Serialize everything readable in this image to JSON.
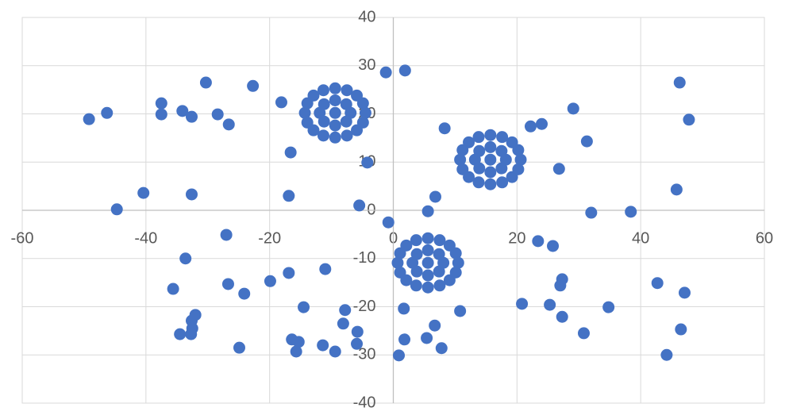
{
  "chart_data": {
    "type": "scatter",
    "color": "#4472c4",
    "grid": true,
    "xlim": [
      -60,
      60
    ],
    "ylim": [
      -40,
      40
    ],
    "xticks": [
      -60,
      -40,
      -20,
      0,
      20,
      40,
      60
    ],
    "yticks": [
      -40,
      -30,
      -20,
      -10,
      0,
      10,
      20,
      30,
      40
    ],
    "x": [
      -4.5,
      -4.9,
      -5.9,
      -7.5,
      -9.4,
      -11.3,
      -12.9,
      -13.9,
      -14.3,
      -13.9,
      -12.9,
      -11.3,
      -9.4,
      -7.5,
      -5.9,
      -4.9,
      -6.9,
      -7.6,
      -9.4,
      -11.2,
      -11.9,
      -11.2,
      -9.4,
      -7.6,
      -9.4,
      20.6,
      20.2,
      19.2,
      17.6,
      15.7,
      13.8,
      12.2,
      11.2,
      10.8,
      11.2,
      12.2,
      13.8,
      15.7,
      17.6,
      19.2,
      20.2,
      18.2,
      17.5,
      15.7,
      13.9,
      13.2,
      13.9,
      15.7,
      17.5,
      15.7,
      10.5,
      10.1,
      9.1,
      7.5,
      5.6,
      3.7,
      2.1,
      1.1,
      0.7,
      1.1,
      2.1,
      3.7,
      5.6,
      7.5,
      9.1,
      10.1,
      8.1,
      7.4,
      5.6,
      3.8,
      3.1,
      3.8,
      5.6,
      7.4,
      5.6,
      -49.2,
      -46.3,
      -44.7,
      -40.4,
      -37.5,
      -37.5,
      -34.1,
      -32.6,
      -30.3,
      -28.4,
      -26.6,
      -22.7,
      -18.1,
      -16.6,
      -32.6,
      -16.9,
      -5.5,
      -4.2,
      -1.2,
      1.9,
      -0.8,
      8.3,
      6.8,
      5.6,
      22.2,
      24.0,
      31.3,
      26.8,
      32.0,
      38.4,
      29.1,
      46.3,
      47.8,
      45.8,
      -27.0,
      -33.6,
      -35.6,
      -26.7,
      -24.1,
      -19.9,
      -16.9,
      -11.0,
      -32.0,
      -32.6,
      -32.5,
      -34.5,
      -32.7,
      -24.9,
      -14.5,
      -16.4,
      -15.3,
      -15.7,
      -11.4,
      -9.4,
      -7.8,
      -8.1,
      -5.8,
      -5.9,
      1.7,
      1.8,
      0.9,
      6.7,
      5.4,
      7.8,
      10.8,
      20.8,
      23.4,
      25.8,
      27.3,
      27.0,
      25.3,
      27.3,
      30.8,
      34.8,
      42.7,
      47.1,
      46.5,
      44.2
    ],
    "y": [
      20.2,
      22.2,
      23.8,
      24.9,
      25.3,
      24.9,
      23.8,
      22.2,
      20.2,
      18.2,
      16.6,
      15.5,
      15.1,
      15.5,
      16.6,
      18.2,
      20.2,
      22.0,
      22.8,
      22.0,
      20.2,
      18.4,
      17.6,
      18.4,
      20.2,
      10.5,
      12.5,
      14.1,
      15.2,
      15.6,
      15.2,
      14.1,
      12.5,
      10.5,
      8.5,
      6.9,
      5.8,
      5.4,
      5.8,
      6.9,
      8.5,
      10.5,
      12.3,
      13.1,
      12.3,
      10.5,
      8.7,
      7.9,
      8.7,
      10.5,
      -10.9,
      -8.9,
      -7.3,
      -6.2,
      -5.8,
      -6.2,
      -7.3,
      -8.9,
      -10.9,
      -12.9,
      -14.5,
      -15.6,
      -16.0,
      -15.6,
      -14.5,
      -12.9,
      -10.9,
      -9.1,
      -8.3,
      -9.1,
      -10.9,
      -12.7,
      -13.5,
      -12.7,
      -10.9,
      18.9,
      20.2,
      0.2,
      3.6,
      22.2,
      19.9,
      20.6,
      19.4,
      26.5,
      19.9,
      17.8,
      25.8,
      22.4,
      12.0,
      3.3,
      3.0,
      1.0,
      9.9,
      28.6,
      29.0,
      -2.5,
      17.0,
      2.8,
      -0.2,
      17.4,
      17.9,
      14.3,
      8.6,
      -0.5,
      -0.3,
      21.1,
      26.5,
      18.8,
      4.3,
      -5.1,
      -10.0,
      -16.3,
      -15.3,
      -17.3,
      -14.7,
      -13.0,
      -12.2,
      -21.7,
      -22.9,
      -24.5,
      -25.7,
      -25.7,
      -28.5,
      -20.1,
      -26.8,
      -27.3,
      -29.3,
      -28.0,
      -29.3,
      -20.7,
      -23.5,
      -25.2,
      -27.7,
      -20.4,
      -26.8,
      -30.1,
      -23.9,
      -26.5,
      -28.6,
      -20.9,
      -19.4,
      -6.4,
      -7.4,
      -14.3,
      -15.6,
      -19.6,
      -22.1,
      -25.5,
      -20.1,
      -15.1,
      -17.1,
      -24.7,
      -30.0
    ]
  }
}
